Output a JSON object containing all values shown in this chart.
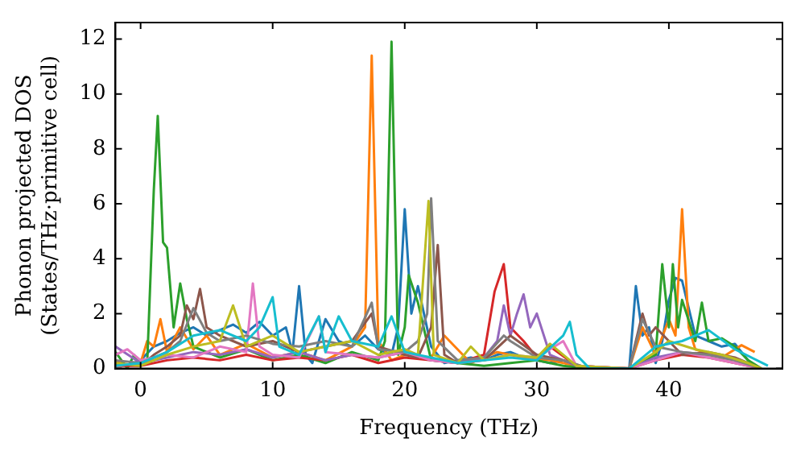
{
  "chart_data": {
    "type": "line",
    "xlabel": "Frequency (THz)",
    "ylabel": "Phonon projected DOS\n(States/THz·primitive cell)",
    "xlim": [
      -1.9,
      48.6
    ],
    "xticks": [
      0,
      10,
      20,
      30,
      40
    ],
    "ylim": [
      0,
      12.6
    ],
    "yticks": [
      0,
      2,
      4,
      6,
      8,
      10,
      12
    ],
    "series": [
      {
        "color": "#1f77b4",
        "x": [
          -1.9,
          -1,
          0,
          1,
          2,
          3,
          4,
          5,
          6,
          7,
          8,
          9,
          10,
          11,
          11.5,
          12,
          12.5,
          13,
          14,
          15,
          16,
          17,
          18,
          19,
          19.5,
          20,
          20.5,
          21,
          22,
          23,
          24,
          25,
          26,
          27,
          28,
          29,
          30,
          31,
          32,
          33,
          33.5,
          37,
          37.5,
          38,
          38.5,
          39,
          39.5,
          40,
          40.5,
          41,
          42,
          43,
          44,
          45,
          46,
          46.5
        ],
        "values": [
          0.2,
          0.1,
          0.3,
          0.8,
          1.0,
          1.3,
          1.5,
          1.2,
          1.4,
          1.6,
          1.3,
          1.7,
          1.2,
          1.5,
          0.6,
          3.0,
          0.5,
          0.2,
          1.8,
          1.0,
          0.8,
          1.2,
          0.7,
          0.5,
          1.5,
          5.8,
          2.0,
          3.0,
          0.8,
          0.2,
          0.3,
          0.4,
          0.3,
          0.5,
          0.6,
          0.4,
          0.3,
          0.2,
          0.3,
          0.1,
          0,
          0,
          3.0,
          1.2,
          1.5,
          0.2,
          1.0,
          2.5,
          3.3,
          3.2,
          1.2,
          1.0,
          0.8,
          0.9,
          0.3,
          0
        ]
      },
      {
        "color": "#ff7f0e",
        "x": [
          -1.9,
          -1,
          0,
          0.5,
          1,
          1.5,
          2,
          3,
          4,
          5,
          6,
          8,
          10,
          12,
          14,
          16,
          17,
          17.5,
          18,
          19,
          20,
          22,
          23,
          25,
          27,
          29,
          31,
          33,
          37,
          38,
          39,
          40,
          40.5,
          41,
          41.5,
          42,
          44,
          45.5,
          46.5
        ],
        "values": [
          0.3,
          0.1,
          0.2,
          1.0,
          0.8,
          1.8,
          0.6,
          1.5,
          0.7,
          1.2,
          0.5,
          0.9,
          0.4,
          0.6,
          0.3,
          0.8,
          1.5,
          11.4,
          1.0,
          0.3,
          0.5,
          0.4,
          1.2,
          0.2,
          0.6,
          0.4,
          0.3,
          0.1,
          0,
          1.5,
          0.5,
          1.8,
          1.2,
          5.8,
          1.5,
          0.7,
          0.4,
          0.85,
          0.6
        ]
      },
      {
        "color": "#2ca02c",
        "x": [
          -1.9,
          -1,
          -0.5,
          0,
          0.5,
          1,
          1.3,
          1.7,
          2,
          2.5,
          3,
          3.5,
          4,
          5,
          6,
          8,
          10,
          12,
          14,
          16,
          18,
          18.5,
          19,
          19.5,
          20,
          20.3,
          21,
          22,
          24,
          26,
          28,
          30,
          32,
          34,
          37,
          39,
          39.5,
          40,
          40.3,
          40.7,
          41,
          42,
          42.5,
          43,
          44,
          45,
          46,
          47
        ],
        "values": [
          0.6,
          0,
          0.5,
          0.1,
          0.2,
          6.5,
          9.2,
          4.6,
          4.4,
          1.5,
          3.1,
          1.8,
          0.8,
          0.6,
          0.4,
          0.7,
          0.3,
          0.5,
          0.2,
          0.6,
          0.3,
          1.0,
          11.9,
          0.5,
          1.5,
          3.4,
          2.4,
          0.3,
          0.2,
          0.1,
          0.2,
          0.3,
          0.1,
          0,
          0,
          0.5,
          3.8,
          1.5,
          3.8,
          1.5,
          2.5,
          1.0,
          2.4,
          1.0,
          1.1,
          0.8,
          0.3,
          0
        ]
      },
      {
        "color": "#d62728",
        "x": [
          -1.9,
          0,
          2,
          4,
          6,
          8,
          10,
          12,
          14,
          16,
          18,
          20,
          22,
          24,
          26,
          26.8,
          27.5,
          28,
          29,
          30,
          31,
          33,
          37,
          39,
          41,
          43,
          45,
          47
        ],
        "values": [
          0.1,
          0.1,
          0.3,
          0.4,
          0.3,
          0.5,
          0.3,
          0.4,
          0.3,
          0.5,
          0.2,
          0.4,
          0.3,
          0.2,
          0.5,
          2.8,
          3.8,
          1.5,
          1.0,
          0.4,
          0.8,
          0.1,
          0,
          0.3,
          0.5,
          0.4,
          0.2,
          0
        ]
      },
      {
        "color": "#9467bd",
        "x": [
          -1.9,
          0,
          2,
          4,
          6,
          8,
          10,
          12,
          14,
          16,
          18,
          20,
          22,
          24,
          26,
          27,
          27.5,
          28,
          28.5,
          29,
          29.5,
          30,
          31,
          33,
          37,
          39,
          41,
          43,
          45,
          47
        ],
        "values": [
          0.8,
          0.2,
          0.4,
          0.6,
          0.5,
          0.7,
          0.4,
          0.6,
          0.3,
          0.5,
          0.4,
          0.6,
          0.3,
          0.2,
          0.4,
          1.0,
          2.3,
          1.2,
          2.0,
          2.7,
          1.5,
          2.0,
          0.5,
          0.1,
          0,
          0.4,
          0.6,
          0.5,
          0.3,
          0
        ]
      },
      {
        "color": "#8c564b",
        "x": [
          -1.9,
          0,
          1,
          2,
          3,
          3.5,
          4,
          4.5,
          5,
          6,
          7,
          8,
          10,
          12,
          14,
          16,
          17.5,
          18,
          20,
          21,
          22,
          22.5,
          23,
          24,
          26,
          28,
          30,
          32,
          34,
          37,
          38,
          38.5,
          39,
          41,
          43,
          45,
          47
        ],
        "values": [
          0.2,
          0.1,
          0.5,
          0.8,
          1.2,
          2.3,
          1.8,
          2.9,
          1.5,
          1.2,
          1.0,
          0.8,
          1.0,
          0.6,
          0.8,
          1.0,
          2.0,
          0.8,
          0.5,
          0.4,
          1.5,
          4.5,
          0.5,
          0.2,
          0.3,
          1.2,
          0.5,
          0.3,
          0,
          0,
          2.0,
          1.2,
          1.5,
          0.5,
          0.6,
          0.4,
          0
        ]
      },
      {
        "color": "#e377c2",
        "x": [
          -1.9,
          -1,
          0,
          2,
          4,
          6,
          8,
          8.5,
          9,
          10,
          12,
          13.5,
          14,
          16,
          18,
          20,
          22,
          24,
          26,
          28,
          30,
          32,
          33,
          37,
          39,
          41,
          43,
          45,
          47
        ],
        "values": [
          0.5,
          0.7,
          0.3,
          0.5,
          0.4,
          0.8,
          0.6,
          3.1,
          0.8,
          0.5,
          0.4,
          1.9,
          0.6,
          0.5,
          0.4,
          0.6,
          0.3,
          0.2,
          0.3,
          0.5,
          0.4,
          1.0,
          0.1,
          0,
          0.3,
          0.6,
          0.4,
          0.2,
          0
        ]
      },
      {
        "color": "#7f7f7f",
        "x": [
          -1.9,
          0,
          2,
          3,
          4,
          5,
          6,
          8,
          10,
          12,
          14,
          16,
          17.5,
          18,
          20,
          21,
          21.7,
          22,
          22.5,
          24,
          26,
          27.5,
          28,
          30,
          32,
          34,
          37,
          38,
          39,
          41,
          43,
          45,
          47
        ],
        "values": [
          0.3,
          0.2,
          0.6,
          1.0,
          2.2,
          1.3,
          1.0,
          1.2,
          0.9,
          0.8,
          1.0,
          0.8,
          2.4,
          0.7,
          0.6,
          1.0,
          2.0,
          6.2,
          1.0,
          0.3,
          0.4,
          1.2,
          1.0,
          0.4,
          0.3,
          0,
          0,
          1.8,
          0.8,
          0.6,
          0.5,
          0.3,
          0
        ]
      },
      {
        "color": "#bcbd22",
        "x": [
          -1.9,
          0,
          2,
          4,
          6,
          7,
          8,
          10,
          12,
          14,
          16,
          18,
          20,
          21,
          21.8,
          22.2,
          24,
          25,
          26,
          28,
          30,
          31,
          33,
          37,
          39,
          40,
          42,
          44,
          46,
          47
        ],
        "values": [
          0.2,
          0.1,
          0.5,
          0.8,
          1.0,
          2.3,
          0.8,
          1.2,
          0.6,
          0.8,
          1.0,
          0.5,
          0.7,
          0.5,
          6.1,
          0.5,
          0.2,
          0.8,
          0.3,
          0.5,
          0.4,
          0.9,
          0.1,
          0,
          0.6,
          1.0,
          0.7,
          0.5,
          0.2,
          0
        ]
      },
      {
        "color": "#17becf",
        "x": [
          -1.9,
          0,
          2,
          4,
          6,
          8,
          9,
          10,
          10.5,
          12,
          13.5,
          14,
          15,
          16,
          18,
          19,
          20,
          22,
          24,
          26,
          28,
          30,
          32,
          32.5,
          33,
          34,
          37,
          39,
          41,
          43,
          45,
          47.5
        ],
        "values": [
          0.1,
          0.2,
          0.6,
          1.2,
          1.4,
          1.0,
          1.5,
          2.6,
          0.8,
          0.5,
          1.9,
          0.6,
          1.9,
          1.0,
          0.8,
          1.9,
          0.6,
          0.4,
          0.2,
          0.3,
          0.4,
          0.3,
          1.2,
          1.7,
          0.5,
          0,
          0,
          0.8,
          1.0,
          1.4,
          0.7,
          0.1
        ]
      }
    ]
  }
}
